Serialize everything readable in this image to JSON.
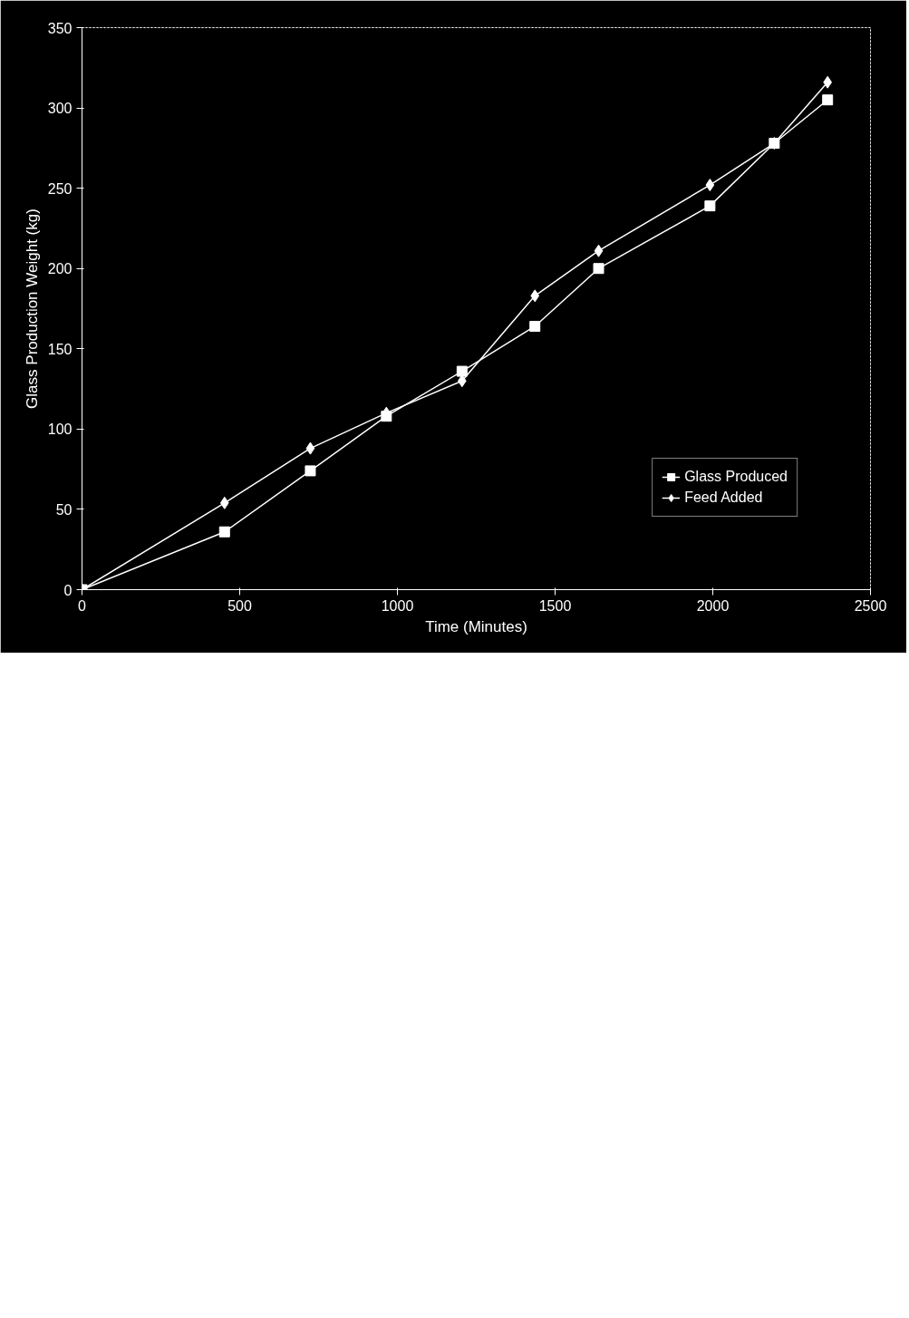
{
  "chart_data": {
    "type": "line",
    "xlabel": "Time (Minutes)",
    "ylabel": "Glass Production Weight (kg)",
    "x": [
      0,
      452,
      724,
      965,
      1205,
      1436,
      1638,
      1991,
      2195,
      2364
    ],
    "series": [
      {
        "name": "Glass Produced",
        "color": "#ffffff",
        "marker": "square",
        "values": [
          0,
          36,
          74,
          108,
          136,
          164,
          200,
          239,
          278,
          305
        ]
      },
      {
        "name": "Feed Added",
        "color": "#ffffff",
        "marker": "diamond",
        "values": [
          0,
          54,
          88,
          110,
          130,
          183,
          211,
          252,
          278,
          316
        ]
      }
    ],
    "xlim": [
      0,
      2500
    ],
    "xticks": [
      0,
      500,
      1000,
      1500,
      2000,
      2500
    ],
    "ylim": [
      0,
      350
    ],
    "yticks": [
      0,
      50,
      100,
      150,
      200,
      250,
      300,
      350
    ],
    "grid": false,
    "legend": "bottom right",
    "line_style": "solid"
  }
}
